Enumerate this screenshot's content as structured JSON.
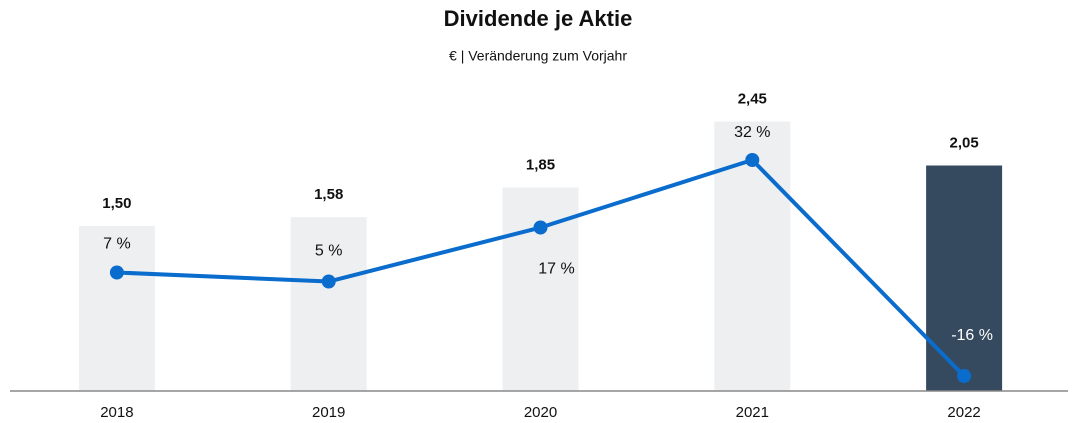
{
  "chart_data": {
    "type": "bar_line",
    "title": "Dividende je Aktie",
    "subtitle": "€ | Veränderung zum Vorjahr",
    "categories": [
      "2018",
      "2019",
      "2020",
      "2021",
      "2022"
    ],
    "series": [
      {
        "name": "Dividende je Aktie",
        "type": "bar",
        "colors": [
          "#eeeff1",
          "#eeeff1",
          "#eeeff1",
          "#eeeff1",
          "#364a5f"
        ],
        "values": [
          1.5,
          1.58,
          1.85,
          2.45,
          2.05
        ],
        "value_labels": [
          "1,50",
          "1,58",
          "1,85",
          "2,45",
          "2,05"
        ]
      },
      {
        "name": "Veränderung zum Vorjahr",
        "type": "line",
        "axis": "y2",
        "color": "#0a6ccd",
        "values": [
          7,
          5,
          17,
          32,
          -16
        ],
        "value_labels": [
          "7 %",
          "5 %",
          "17 %",
          "32 %",
          "-16 %"
        ]
      }
    ],
    "ylim": [
      0,
      3
    ],
    "y2lim": [
      -19.33,
      54
    ]
  }
}
